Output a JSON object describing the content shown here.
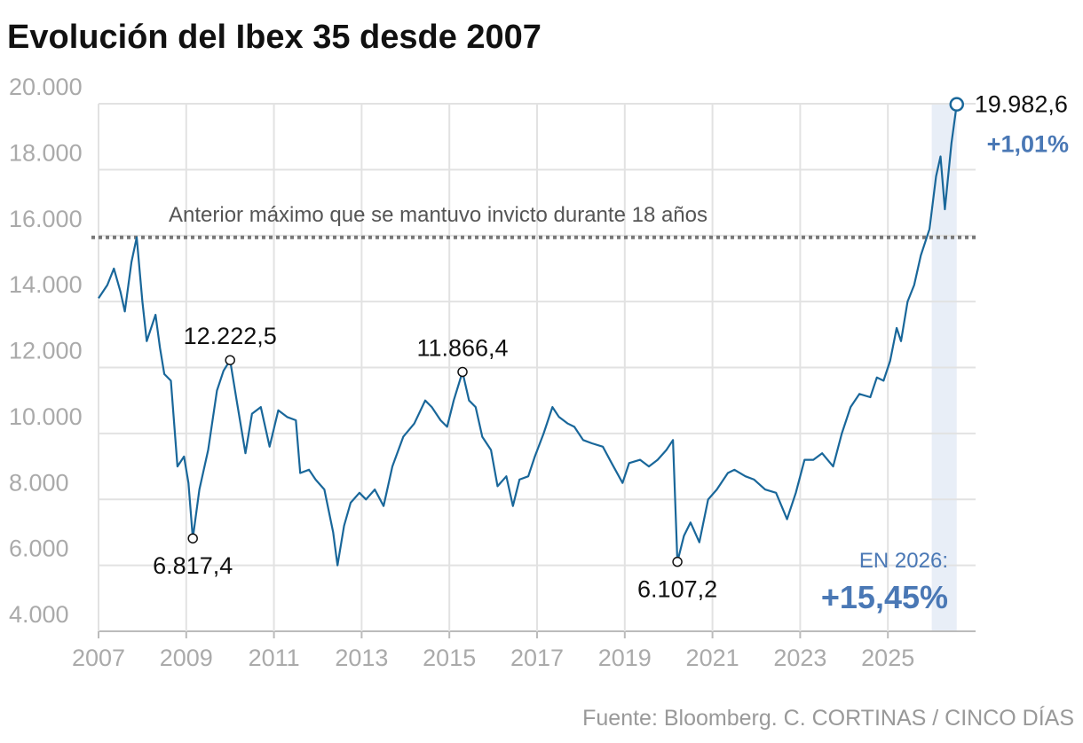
{
  "chart_data": {
    "type": "line",
    "title": "Evolución del Ibex 35 desde 2007",
    "source": "Fuente: Bloomberg. C. CORTINAS / CINCO DÍAS",
    "xlim": [
      2007,
      2027
    ],
    "xticks": [
      2007,
      2009,
      2011,
      2013,
      2015,
      2017,
      2019,
      2021,
      2023,
      2025
    ],
    "ylim": [
      4000,
      20000
    ],
    "yticks": [
      {
        "value": 4000,
        "label": "4.000"
      },
      {
        "value": 6000,
        "label": "6.000"
      },
      {
        "value": 8000,
        "label": "8.000"
      },
      {
        "value": 10000,
        "label": "10.000"
      },
      {
        "value": 12000,
        "label": "12.000"
      },
      {
        "value": 14000,
        "label": "14.000"
      },
      {
        "value": 16000,
        "label": "16.000"
      },
      {
        "value": 18000,
        "label": "18.000"
      },
      {
        "value": 20000,
        "label": "20.000"
      }
    ],
    "grid": true,
    "reference_line": {
      "value": 15945.7,
      "label": "Anterior máximo que se mantuvo invicto durante 18 años"
    },
    "highlight": {
      "xlim": [
        2026,
        2026.57
      ],
      "label": "EN 2026:",
      "change": "+15,45%"
    },
    "last_label": "19.982,6",
    "last_change": "+1,01%",
    "annotations": [
      {
        "x": 2009.15,
        "y": 6817.4,
        "label": "6.817,4"
      },
      {
        "x": 2010.0,
        "y": 12222.5,
        "label": "12.222,5"
      },
      {
        "x": 2015.3,
        "y": 11866.4,
        "label": "11.866,4"
      },
      {
        "x": 2020.2,
        "y": 6107.2,
        "label": "6.107,2"
      }
    ],
    "series": [
      {
        "name": "Ibex 35",
        "color": "#19679a",
        "x": [
          2007.0,
          2007.2,
          2007.35,
          2007.5,
          2007.6,
          2007.75,
          2007.87,
          2008.0,
          2008.1,
          2008.3,
          2008.4,
          2008.5,
          2008.65,
          2008.8,
          2008.95,
          2009.05,
          2009.15,
          2009.3,
          2009.5,
          2009.7,
          2009.85,
          2010.0,
          2010.15,
          2010.35,
          2010.5,
          2010.7,
          2010.9,
          2011.1,
          2011.3,
          2011.5,
          2011.6,
          2011.8,
          2011.95,
          2012.15,
          2012.35,
          2012.45,
          2012.6,
          2012.75,
          2012.95,
          2013.1,
          2013.3,
          2013.5,
          2013.7,
          2013.95,
          2014.2,
          2014.45,
          2014.6,
          2014.8,
          2014.95,
          2015.1,
          2015.3,
          2015.45,
          2015.6,
          2015.75,
          2015.95,
          2016.1,
          2016.3,
          2016.45,
          2016.6,
          2016.8,
          2016.95,
          2017.15,
          2017.35,
          2017.5,
          2017.7,
          2017.85,
          2018.05,
          2018.25,
          2018.5,
          2018.7,
          2018.95,
          2019.1,
          2019.35,
          2019.55,
          2019.75,
          2019.95,
          2020.1,
          2020.2,
          2020.35,
          2020.5,
          2020.7,
          2020.9,
          2021.1,
          2021.35,
          2021.5,
          2021.75,
          2021.95,
          2022.2,
          2022.45,
          2022.7,
          2022.9,
          2023.1,
          2023.3,
          2023.5,
          2023.75,
          2023.95,
          2024.15,
          2024.35,
          2024.6,
          2024.75,
          2024.9,
          2025.05,
          2025.2,
          2025.3,
          2025.45,
          2025.6,
          2025.75,
          2025.95,
          2026.1,
          2026.2,
          2026.3,
          2026.45,
          2026.57
        ],
        "values": [
          14100,
          14500,
          15000,
          14300,
          13700,
          15200,
          15945,
          14000,
          12800,
          13600,
          12600,
          11800,
          11600,
          9000,
          9300,
          8500,
          6817.4,
          8300,
          9500,
          11300,
          11900,
          12222.5,
          11000,
          9400,
          10600,
          10800,
          9600,
          10700,
          10500,
          10400,
          8800,
          8900,
          8600,
          8300,
          7000,
          6000,
          7200,
          7900,
          8200,
          8000,
          8300,
          7800,
          9000,
          9900,
          10300,
          11000,
          10800,
          10400,
          10200,
          11000,
          11866.4,
          11000,
          10800,
          9900,
          9500,
          8400,
          8700,
          7800,
          8600,
          8700,
          9300,
          10000,
          10800,
          10500,
          10300,
          10200,
          9800,
          9700,
          9600,
          9100,
          8500,
          9100,
          9200,
          9000,
          9200,
          9500,
          9800,
          6107.2,
          6900,
          7300,
          6700,
          8000,
          8300,
          8800,
          8900,
          8700,
          8600,
          8300,
          8200,
          7400,
          8200,
          9200,
          9200,
          9400,
          9000,
          10000,
          10800,
          11200,
          11100,
          11700,
          11600,
          12200,
          13200,
          12800,
          14000,
          14500,
          15400,
          16200,
          17800,
          18400,
          16800,
          18800,
          19982.6
        ]
      }
    ]
  }
}
